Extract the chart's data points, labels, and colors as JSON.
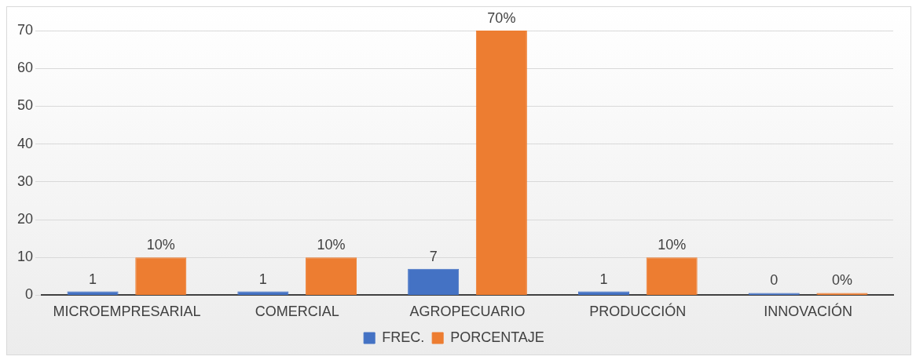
{
  "chart_data": {
    "type": "bar",
    "categories": [
      "MICROEMPRESARIAL",
      "COMERCIAL",
      "AGROPECUARIO",
      "PRODUCCIÓN",
      "INNOVACIÓN"
    ],
    "series": [
      {
        "name": "FREC.",
        "color": "#4472c4",
        "values": [
          1,
          1,
          7,
          1,
          0
        ],
        "value_labels": [
          "1",
          "1",
          "7",
          "1",
          "0"
        ]
      },
      {
        "name": "PORCENTAJE",
        "color": "#ed7d31",
        "values": [
          10,
          10,
          70,
          10,
          0
        ],
        "value_labels": [
          "10%",
          "10%",
          "70%",
          "10%",
          "0%"
        ]
      }
    ],
    "ylim": [
      0,
      70
    ],
    "yticks": [
      0,
      10,
      20,
      30,
      40,
      50,
      60,
      70
    ],
    "grid": "y",
    "legend": "bottom"
  }
}
